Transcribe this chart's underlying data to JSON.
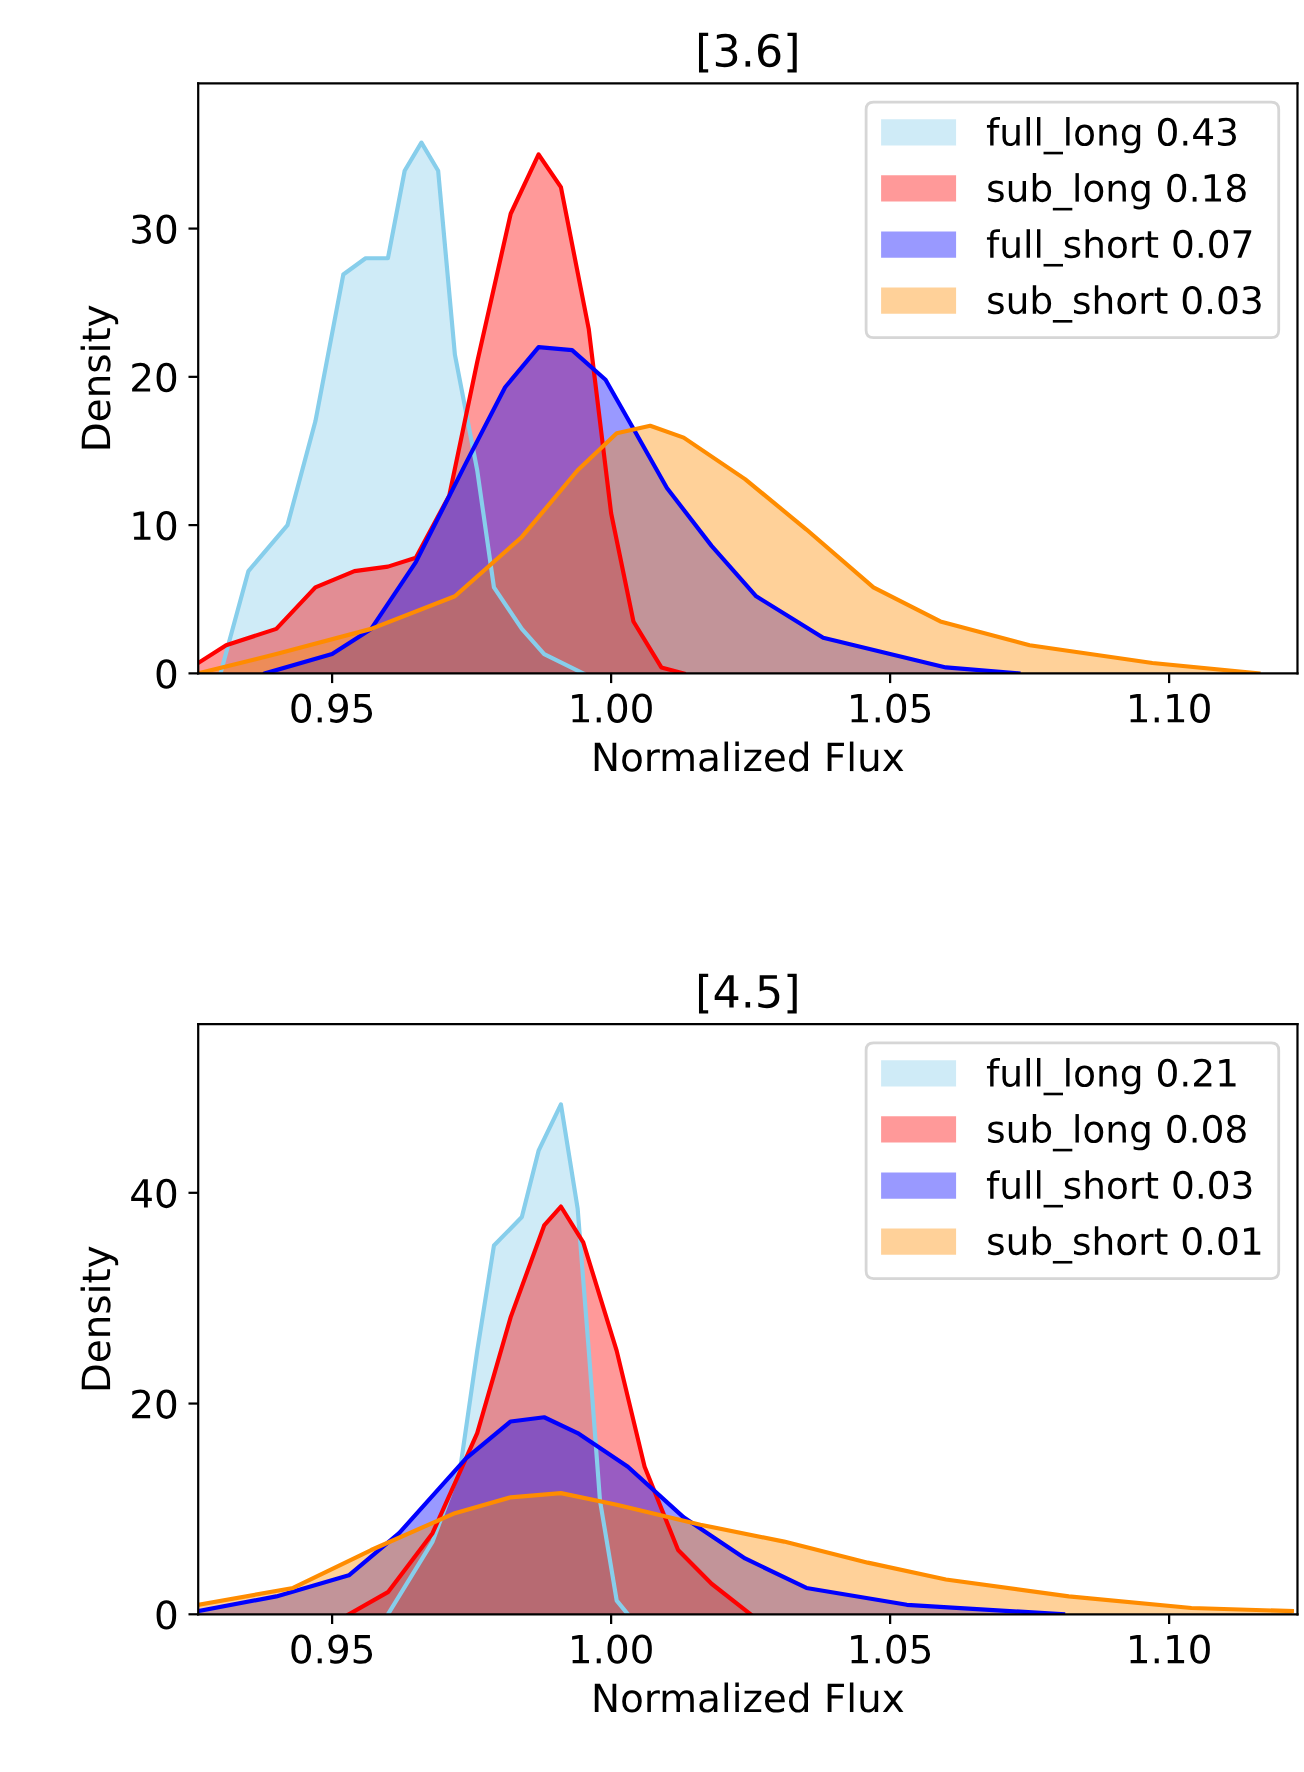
{
  "chart_data": [
    {
      "type": "area",
      "title": "[3.6]",
      "xlabel": "Normalized Flux",
      "ylabel": "Density",
      "xlim": [
        0.926,
        1.123
      ],
      "xticks": [
        {
          "value": 0.95,
          "label": "0.95"
        },
        {
          "value": 1.0,
          "label": "1.00"
        },
        {
          "value": 1.05,
          "label": "1.05"
        },
        {
          "value": 1.1,
          "label": "1.10"
        }
      ],
      "ylim": [
        0,
        39.8
      ],
      "yticks": [
        0,
        10,
        20,
        30
      ],
      "legend": "top right",
      "series": [
        {
          "name": "full_long 0.43",
          "color": "#87ceeb",
          "x": [
            0.93,
            0.935,
            0.942,
            0.947,
            0.952,
            0.956,
            0.96,
            0.963,
            0.966,
            0.969,
            0.972,
            0.976,
            0.979,
            0.984,
            0.988,
            0.995
          ],
          "values": [
            0,
            6.9,
            10,
            17,
            26.9,
            28,
            28,
            33.9,
            35.8,
            33.9,
            21.5,
            13.7,
            5.8,
            3,
            1.3,
            0
          ]
        },
        {
          "name": "sub_long 0.18",
          "color": "#ff0000",
          "x": [
            0.926,
            0.931,
            0.94,
            0.947,
            0.954,
            0.96,
            0.965,
            0.971,
            0.976,
            0.982,
            0.987,
            0.991,
            0.996,
            1.0,
            1.004,
            1.009,
            1.013
          ],
          "values": [
            0.7,
            1.9,
            3,
            5.8,
            6.9,
            7.2,
            7.8,
            12,
            21,
            31,
            35,
            32.8,
            23.2,
            10.8,
            3.5,
            0.4,
            0
          ]
        },
        {
          "name": "full_short 0.07",
          "color": "#0000ff",
          "x": [
            0.938,
            0.95,
            0.957,
            0.965,
            0.974,
            0.981,
            0.987,
            0.993,
            0.999,
            1.004,
            1.01,
            1.018,
            1.026,
            1.038,
            1.05,
            1.06,
            1.073
          ],
          "values": [
            0,
            1.3,
            3,
            7.5,
            14.2,
            19.3,
            22,
            21.8,
            19.8,
            16.5,
            12.5,
            8.6,
            5.2,
            2.4,
            1.3,
            0.4,
            0
          ]
        },
        {
          "name": "sub_short 0.03",
          "color": "#ff8c00",
          "x": [
            0.926,
            0.94,
            0.957,
            0.972,
            0.984,
            0.994,
            1.001,
            1.007,
            1.013,
            1.024,
            1.035,
            1.047,
            1.059,
            1.075,
            1.097,
            1.116
          ],
          "values": [
            0,
            1.3,
            3,
            5.2,
            9.2,
            13.7,
            16.2,
            16.7,
            15.9,
            13.1,
            9.7,
            5.8,
            3.5,
            1.9,
            0.7,
            0
          ]
        }
      ]
    },
    {
      "type": "area",
      "title": "[4.5]",
      "xlabel": "Normalized Flux",
      "ylabel": "Density",
      "xlim": [
        0.926,
        1.123
      ],
      "xticks": [
        {
          "value": 0.95,
          "label": "0.95"
        },
        {
          "value": 1.0,
          "label": "1.00"
        },
        {
          "value": 1.05,
          "label": "1.05"
        },
        {
          "value": 1.1,
          "label": "1.10"
        }
      ],
      "ylim": [
        0,
        56
      ],
      "yticks": [
        0,
        20,
        40
      ],
      "legend": "top right",
      "series": [
        {
          "name": "full_long 0.21",
          "color": "#87ceeb",
          "x": [
            0.96,
            0.968,
            0.973,
            0.976,
            0.979,
            0.984,
            0.987,
            0.991,
            0.994,
            0.996,
            0.998,
            1.001,
            1.003
          ],
          "values": [
            0,
            6.9,
            14,
            25,
            35,
            37.7,
            44,
            48.4,
            38.5,
            25,
            10.8,
            1.3,
            0
          ]
        },
        {
          "name": "sub_long 0.08",
          "color": "#ff0000",
          "x": [
            0.953,
            0.96,
            0.968,
            0.976,
            0.982,
            0.988,
            0.991,
            0.995,
            1.001,
            1.006,
            1.012,
            1.018,
            1.025
          ],
          "values": [
            0,
            2.1,
            7.7,
            17.2,
            28.2,
            36.9,
            38.7,
            35.3,
            25,
            14,
            6.1,
            2.9,
            0
          ]
        },
        {
          "name": "full_short 0.03",
          "color": "#0000ff",
          "x": [
            0.926,
            0.94,
            0.953,
            0.962,
            0.974,
            0.982,
            0.988,
            0.994,
            1.003,
            1.013,
            1.024,
            1.035,
            1.053,
            1.081
          ],
          "values": [
            0.3,
            1.7,
            3.7,
            7.7,
            14.8,
            18.3,
            18.7,
            17.2,
            14,
            9.2,
            5.3,
            2.5,
            0.9,
            0
          ]
        },
        {
          "name": "sub_short 0.01",
          "color": "#ff8c00",
          "x": [
            0.926,
            0.943,
            0.957,
            0.972,
            0.982,
            0.991,
            1.001,
            1.016,
            1.031,
            1.046,
            1.06,
            1.082,
            1.104,
            1.122
          ],
          "values": [
            0.9,
            2.5,
            6.1,
            9.6,
            11.1,
            11.5,
            10.4,
            8.5,
            6.9,
            4.9,
            3.3,
            1.7,
            0.6,
            0.3
          ]
        }
      ]
    }
  ]
}
